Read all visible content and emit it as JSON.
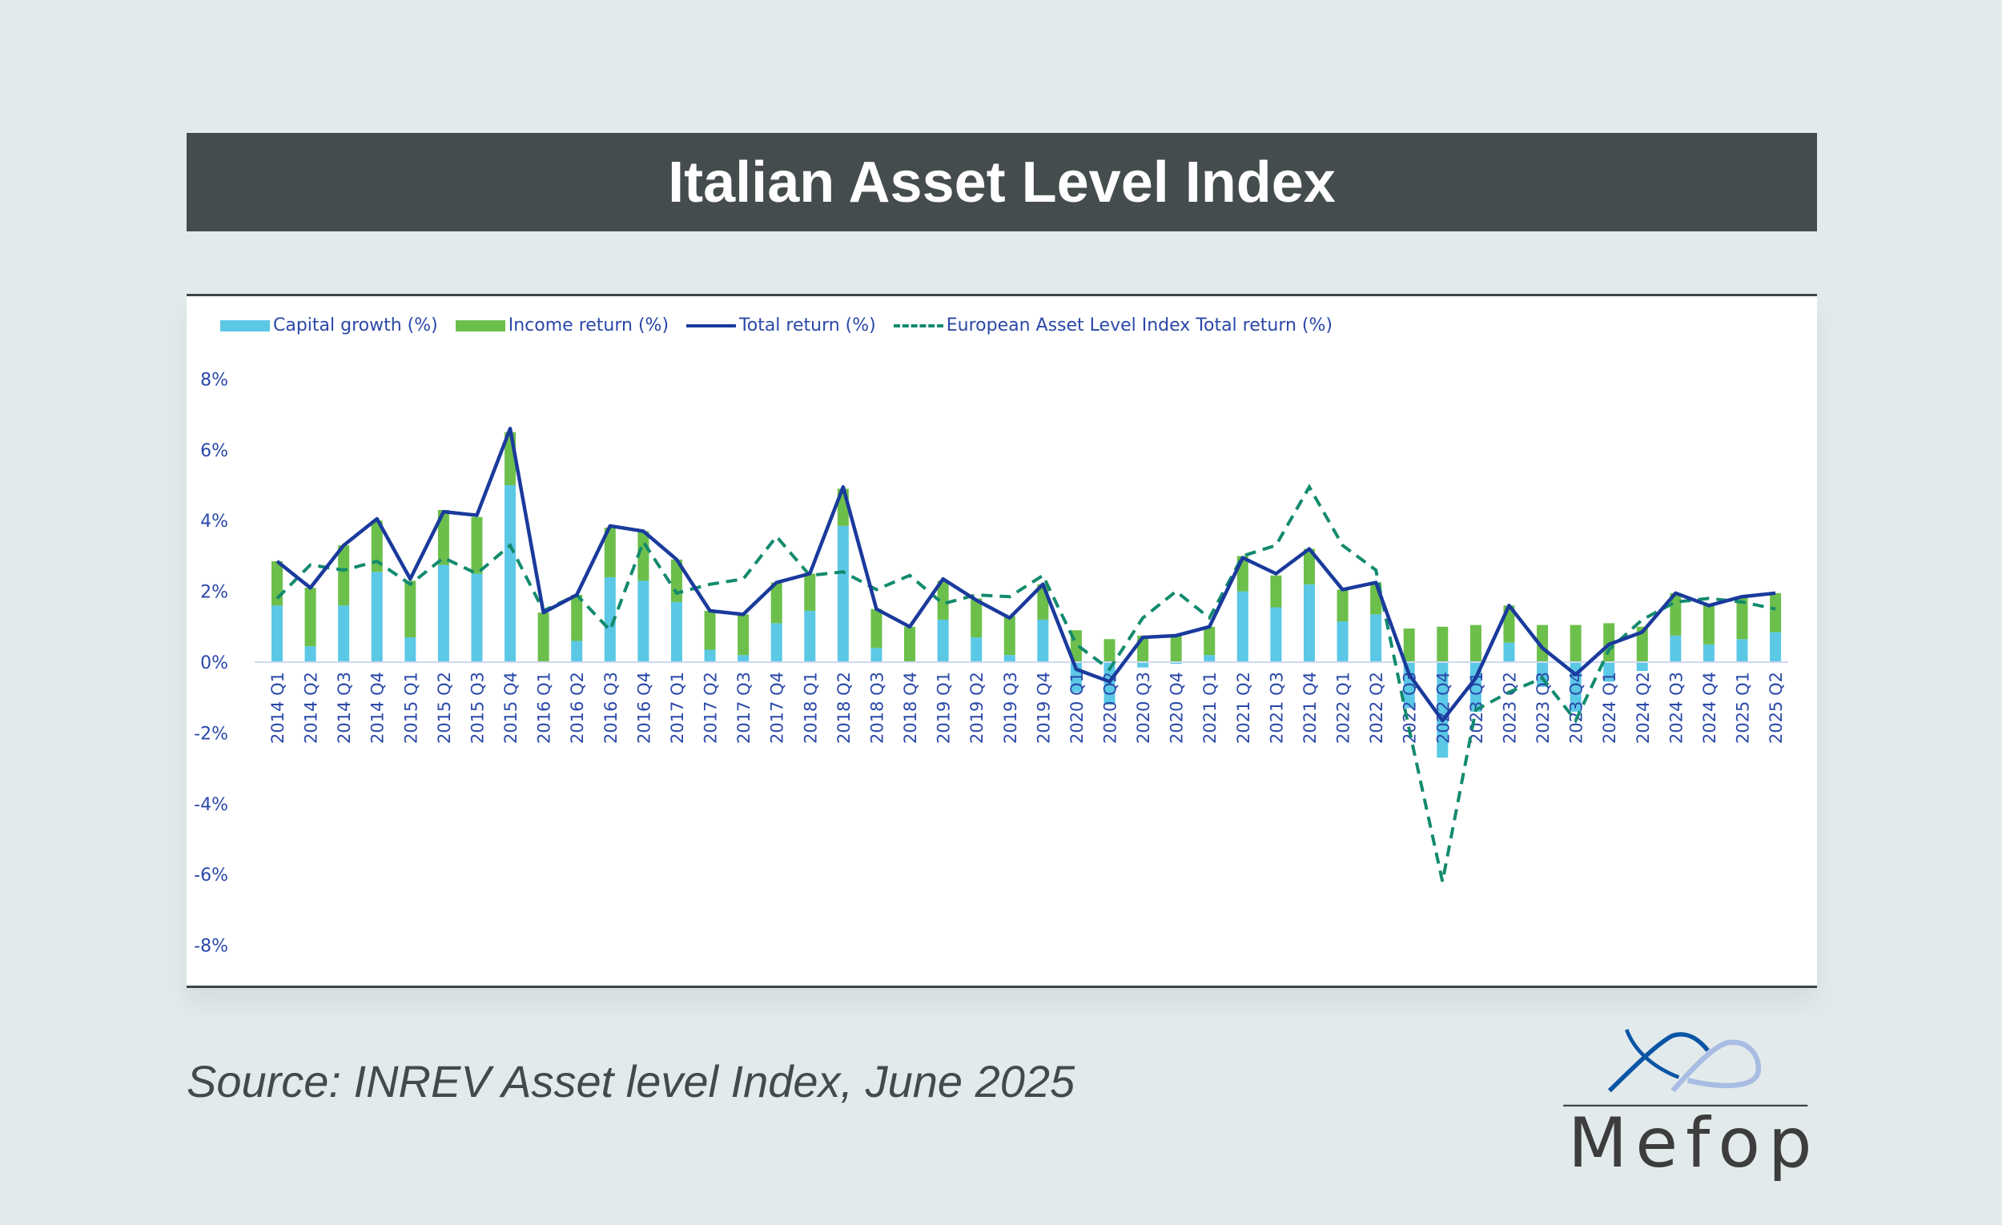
{
  "header": {
    "title": "Italian Asset Level Index"
  },
  "source": "Source: INREV Asset level Index, June 2025",
  "logo": {
    "text": "Mefop"
  },
  "colors": {
    "capital": "#5bc8e6",
    "income": "#6cbf4a",
    "total": "#1a3a9c",
    "european": "#138a6e",
    "axis_text": "#2a48a8"
  },
  "chart_data": {
    "type": "bar",
    "stacked": true,
    "ylim": [
      -8,
      8
    ],
    "yticks": [
      "8%",
      "6%",
      "4%",
      "2%",
      "0%",
      "-2%",
      "-4%",
      "-6%",
      "-8%"
    ],
    "ytick_values": [
      8,
      6,
      4,
      2,
      0,
      -2,
      -4,
      -6,
      -8
    ],
    "grid": false,
    "legend_position": "top-left",
    "categories": [
      "2014 Q1",
      "2014 Q2",
      "2014 Q3",
      "2014 Q4",
      "2015 Q1",
      "2015 Q2",
      "2015 Q3",
      "2015 Q4",
      "2016 Q1",
      "2016 Q2",
      "2016 Q3",
      "2016 Q4",
      "2017 Q1",
      "2017 Q2",
      "2017 Q3",
      "2017 Q4",
      "2018 Q1",
      "2018 Q2",
      "2018 Q3",
      "2018 Q4",
      "2019 Q1",
      "2019 Q2",
      "2019 Q3",
      "2019 Q4",
      "2020 Q1",
      "2020 Q2",
      "2020 Q3",
      "2020 Q4",
      "2021 Q1",
      "2021 Q2",
      "2021 Q3",
      "2021 Q4",
      "2022 Q1",
      "2022 Q2",
      "2022 Q3",
      "2022 Q4",
      "2023 Q1",
      "2023 Q2",
      "2023 Q3",
      "2023 Q4",
      "2024 Q1",
      "2024 Q2",
      "2024 Q3",
      "2024 Q4",
      "2025 Q1",
      "2025 Q2"
    ],
    "series": [
      {
        "name": "Capital growth (%)",
        "type": "bar",
        "values": [
          1.6,
          0.45,
          1.6,
          2.55,
          0.7,
          2.75,
          2.5,
          5.0,
          0.0,
          0.6,
          2.4,
          2.3,
          1.7,
          0.35,
          0.2,
          1.1,
          1.45,
          3.85,
          0.4,
          0.0,
          1.2,
          0.7,
          0.2,
          1.2,
          -0.85,
          -1.2,
          -0.15,
          -0.05,
          0.2,
          2.0,
          1.55,
          2.2,
          1.15,
          1.35,
          -1.3,
          -2.7,
          -1.4,
          0.55,
          -0.7,
          -1.4,
          -0.55,
          -0.25,
          0.75,
          0.5,
          0.65,
          0.85
        ]
      },
      {
        "name": "Income return (%)",
        "type": "bar",
        "values": [
          1.25,
          1.65,
          1.7,
          1.45,
          1.6,
          1.55,
          1.6,
          1.5,
          1.4,
          1.3,
          1.4,
          1.4,
          1.2,
          1.1,
          1.15,
          1.15,
          1.05,
          1.05,
          1.1,
          1.0,
          1.1,
          1.1,
          1.1,
          1.0,
          0.9,
          0.65,
          0.75,
          0.75,
          0.8,
          1.0,
          0.9,
          1.0,
          0.9,
          0.9,
          0.95,
          1.0,
          1.05,
          1.05,
          1.05,
          1.05,
          1.1,
          1.0,
          1.2,
          1.1,
          1.2,
          1.1
        ]
      },
      {
        "name": "Total return (%)",
        "type": "line",
        "values": [
          2.85,
          2.1,
          3.3,
          4.05,
          2.35,
          4.25,
          4.15,
          6.6,
          1.4,
          1.9,
          3.85,
          3.7,
          2.9,
          1.45,
          1.35,
          2.25,
          2.5,
          4.95,
          1.5,
          1.0,
          2.35,
          1.75,
          1.25,
          2.2,
          -0.2,
          -0.55,
          0.7,
          0.75,
          1.0,
          2.95,
          2.5,
          3.2,
          2.05,
          2.25,
          -0.35,
          -1.65,
          -0.45,
          1.6,
          0.4,
          -0.35,
          0.5,
          0.85,
          1.95,
          1.6,
          1.85,
          1.95
        ]
      },
      {
        "name": "European Asset Level Index Total return (%)",
        "type": "line",
        "dashed": true,
        "values": [
          1.8,
          2.75,
          2.6,
          2.85,
          2.2,
          2.95,
          2.5,
          3.3,
          1.45,
          1.9,
          0.9,
          3.4,
          1.95,
          2.2,
          2.35,
          3.55,
          2.45,
          2.55,
          2.05,
          2.45,
          1.65,
          1.9,
          1.85,
          2.45,
          0.5,
          -0.2,
          1.25,
          2.0,
          1.25,
          3.0,
          3.3,
          4.95,
          3.3,
          2.6,
          -1.9,
          -6.2,
          -1.35,
          -0.85,
          -0.45,
          -1.65,
          0.35,
          1.2,
          1.7,
          1.8,
          1.7,
          1.5
        ]
      }
    ]
  }
}
